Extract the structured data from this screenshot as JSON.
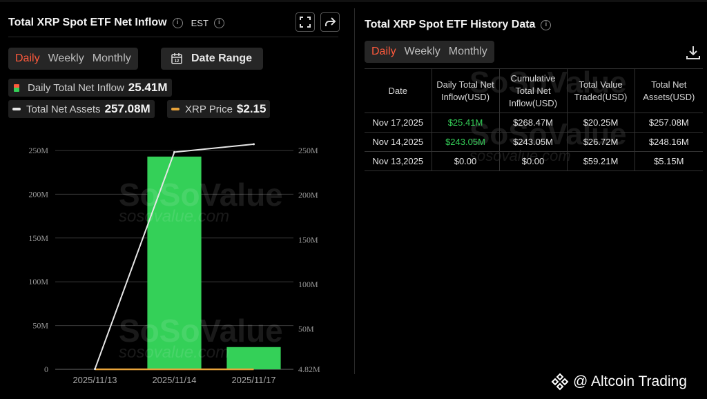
{
  "left_panel": {
    "title": "Total XRP Spot ETF Net Inflow",
    "info_glyph": "i",
    "timezone": "EST",
    "tabs": [
      "Daily",
      "Weekly",
      "Monthly"
    ],
    "active_tab": "Daily",
    "date_range_label": "Date Range",
    "legend": {
      "inflow_label": "Daily Total Net Inflow",
      "inflow_value": "25.41M",
      "assets_label": "Total Net Assets",
      "assets_value": "257.08M",
      "price_label": "XRP Price",
      "price_value": "$2.15"
    }
  },
  "right_panel": {
    "title": "Total XRP Spot ETF History Data",
    "info_glyph": "i",
    "tabs": [
      "Daily",
      "Weekly",
      "Monthly"
    ],
    "active_tab": "Daily",
    "columns": [
      "Date",
      "Daily Total Net Inflow(USD)",
      "Cumulative Total Net Inflow(USD)",
      "Total Value Traded(USD)",
      "Total Net Assets(USD)"
    ],
    "rows": [
      [
        "Nov 17,2025",
        "$25.41M",
        "$268.47M",
        "$20.25M",
        "$257.08M"
      ],
      [
        "Nov 14,2025",
        "$243.05M",
        "$243.05M",
        "$26.72M",
        "$248.16M"
      ],
      [
        "Nov 13,2025",
        "$0.00",
        "$0.00",
        "$59.21M",
        "$5.15M"
      ]
    ]
  },
  "watermark": {
    "brand": "SoSoValue",
    "domain": "sosovalue.com"
  },
  "footer": {
    "text": "@ Altcoin Trading"
  },
  "colors": {
    "accent": "#ff5a3c",
    "inflow_bar": "#34d058",
    "assets_line": "#e6e6e6",
    "price_line": "#e8a33a",
    "background": "#000000"
  },
  "icons": [
    "info-icon",
    "fullscreen-icon",
    "share-icon",
    "calendar-icon",
    "download-icon",
    "binance-logo-icon"
  ],
  "chart_data": {
    "type": "bar",
    "categories": [
      "2025/11/13",
      "2025/11/14",
      "2025/11/17"
    ],
    "series": [
      {
        "name": "Daily Total Net Inflow",
        "type": "bar",
        "values": [
          0,
          243.05,
          25.41
        ]
      },
      {
        "name": "Total Net Assets",
        "type": "line",
        "values": [
          5.15,
          248.16,
          257.08
        ]
      },
      {
        "name": "XRP Price",
        "type": "line",
        "values": [
          null,
          null,
          2.15
        ]
      }
    ],
    "y_left_ticks": [
      "0",
      "50M",
      "100M",
      "150M",
      "200M",
      "250M"
    ],
    "y_left_range": [
      0,
      250
    ],
    "y_right_ticks": [
      "4.82M",
      "50M",
      "100M",
      "150M",
      "200M",
      "250M"
    ],
    "y_right_range": [
      4.82,
      250
    ],
    "grid": true,
    "legend_position": "top"
  }
}
